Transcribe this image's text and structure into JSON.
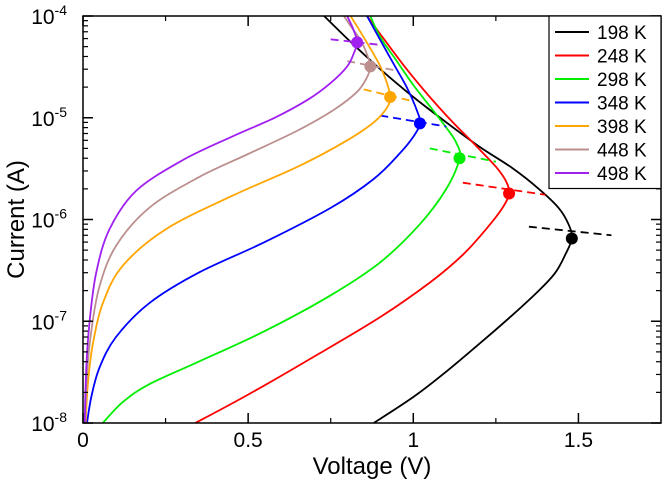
{
  "chart_data": {
    "type": "line",
    "title": "",
    "xlabel": "Voltage (V)",
    "ylabel": "Current (A)",
    "xlim": [
      0,
      1.75
    ],
    "ylim": [
      1e-08,
      0.0001
    ],
    "yscale": "log",
    "grid": false,
    "legend_position": "top-right",
    "x_ticks": [
      {
        "value": 0,
        "label": "0"
      },
      {
        "value": 0.5,
        "label": "0.5"
      },
      {
        "value": 1,
        "label": "1"
      },
      {
        "value": 1.5,
        "label": "1.5"
      }
    ],
    "y_ticks": [
      {
        "value": 1e-08,
        "base": "10",
        "exp": "-8"
      },
      {
        "value": 1e-07,
        "base": "10",
        "exp": "-7"
      },
      {
        "value": 1e-06,
        "base": "10",
        "exp": "-6"
      },
      {
        "value": 1e-05,
        "base": "10",
        "exp": "-5"
      },
      {
        "value": 0.0001,
        "base": "10",
        "exp": "-4"
      }
    ],
    "series": [
      {
        "name": "198 K",
        "color": "#000000",
        "peak": {
          "v": 1.48,
          "i": 6.5e-07
        },
        "x": [
          0.88,
          1.0,
          1.1,
          1.2,
          1.3,
          1.38,
          1.43,
          1.46,
          1.48,
          1.47,
          1.44,
          1.38,
          1.3,
          1.2,
          1.1,
          1.0,
          0.9,
          0.8,
          0.73
        ],
        "y": [
          1e-08,
          1.8e-08,
          3.2e-08,
          6e-08,
          1.15e-07,
          2e-07,
          3e-07,
          4.5e-07,
          6.5e-07,
          9e-07,
          1.3e-06,
          2e-06,
          3.2e-06,
          5.2e-06,
          9e-06,
          1.6e-05,
          3e-05,
          6e-05,
          0.0001
        ],
        "tangent": {
          "x": [
            1.35,
            1.6
          ],
          "y": [
            8.5e-07,
            7e-07
          ]
        }
      },
      {
        "name": "248 K",
        "color": "#ff0000",
        "peak": {
          "v": 1.29,
          "i": 1.8e-06
        },
        "x": [
          0.34,
          0.5,
          0.7,
          0.9,
          1.05,
          1.15,
          1.22,
          1.27,
          1.29,
          1.28,
          1.25,
          1.19,
          1.12,
          1.05,
          0.98,
          0.91,
          0.86
        ],
        "y": [
          1e-08,
          1.9e-08,
          4.5e-08,
          1.1e-07,
          2.4e-07,
          4.5e-07,
          8e-07,
          1.3e-06,
          1.8e-06,
          2.4e-06,
          3.3e-06,
          5.3e-06,
          9e-06,
          1.6e-05,
          3e-05,
          6e-05,
          0.0001
        ],
        "tangent": {
          "x": [
            1.15,
            1.4
          ],
          "y": [
            2.3e-06,
            1.75e-06
          ]
        }
      },
      {
        "name": "298 K",
        "color": "#00ee00",
        "peak": {
          "v": 1.14,
          "i": 4e-06
        },
        "x": [
          0.06,
          0.12,
          0.2,
          0.35,
          0.55,
          0.75,
          0.9,
          1.02,
          1.1,
          1.14,
          1.13,
          1.1,
          1.05,
          1.0,
          0.95,
          0.9,
          0.87
        ],
        "y": [
          1e-08,
          1.6e-08,
          2.4e-08,
          4e-08,
          8e-08,
          1.8e-07,
          3.8e-07,
          9e-07,
          2e-06,
          4e-06,
          5.7e-06,
          8e-06,
          1.3e-05,
          2.1e-05,
          3.6e-05,
          6.2e-05,
          0.0001
        ],
        "tangent": {
          "x": [
            1.05,
            1.25
          ],
          "y": [
            5e-06,
            3.7e-06
          ]
        }
      },
      {
        "name": "348 K",
        "color": "#0000ff",
        "peak": {
          "v": 1.02,
          "i": 8.8e-06
        },
        "x": [
          0.012,
          0.025,
          0.05,
          0.1,
          0.2,
          0.35,
          0.55,
          0.75,
          0.88,
          0.96,
          1.0,
          1.02,
          1.01,
          0.98,
          0.94,
          0.9,
          0.86
        ],
        "y": [
          1e-08,
          1.8e-08,
          3.5e-08,
          7e-08,
          1.5e-07,
          3e-07,
          6e-07,
          1.3e-06,
          2.5e-06,
          4.5e-06,
          6.5e-06,
          8.8e-06,
          1.2e-05,
          2e-05,
          3.4e-05,
          5.8e-05,
          0.0001
        ],
        "tangent": {
          "x": [
            0.9,
            1.1
          ],
          "y": [
            1.05e-05,
            8.2e-06
          ]
        }
      },
      {
        "name": "398 K",
        "color": "#ffa500",
        "peak": {
          "v": 0.93,
          "i": 1.6e-05
        },
        "x": [
          0.008,
          0.015,
          0.03,
          0.06,
          0.12,
          0.25,
          0.45,
          0.65,
          0.8,
          0.88,
          0.92,
          0.93,
          0.92,
          0.9,
          0.87,
          0.84,
          0.81
        ],
        "y": [
          1e-08,
          2.5e-08,
          6e-08,
          1.5e-07,
          3.5e-07,
          8e-07,
          1.7e-06,
          3.3e-06,
          6e-06,
          9e-06,
          1.25e-05,
          1.6e-05,
          2.2e-05,
          3.2e-05,
          4.8e-05,
          7e-05,
          0.0001
        ],
        "tangent": {
          "x": [
            0.85,
            1.0
          ],
          "y": [
            1.9e-05,
            1.45e-05
          ]
        }
      },
      {
        "name": "448 K",
        "color": "#bc8f8f",
        "peak": {
          "v": 0.87,
          "i": 3.2e-05
        },
        "x": [
          0.006,
          0.012,
          0.025,
          0.05,
          0.1,
          0.2,
          0.35,
          0.5,
          0.65,
          0.76,
          0.83,
          0.86,
          0.87,
          0.86,
          0.84,
          0.81,
          0.79
        ],
        "y": [
          1e-08,
          3e-08,
          8e-08,
          2.2e-07,
          5.5e-07,
          1.3e-06,
          2.6e-06,
          4.4e-06,
          7.5e-06,
          1.2e-05,
          1.8e-05,
          2.5e-05,
          3.2e-05,
          4.2e-05,
          5.8e-05,
          8e-05,
          0.0001
        ],
        "tangent": {
          "x": [
            0.8,
            0.95
          ],
          "y": [
            3.6e-05,
            2.9e-05
          ]
        }
      },
      {
        "name": "498 K",
        "color": "#a020f0",
        "peak": {
          "v": 0.83,
          "i": 5.5e-05
        },
        "x": [
          0.005,
          0.01,
          0.02,
          0.04,
          0.08,
          0.16,
          0.3,
          0.45,
          0.58,
          0.68,
          0.75,
          0.8,
          0.82,
          0.83,
          0.82,
          0.8
        ],
        "y": [
          1e-08,
          3.5e-08,
          1e-07,
          3e-07,
          8e-07,
          1.9e-06,
          3.8e-06,
          6.5e-06,
          1e-05,
          1.5e-05,
          2.2e-05,
          3.2e-05,
          4.3e-05,
          5.5e-05,
          7.2e-05,
          0.0001
        ],
        "tangent": {
          "x": [
            0.75,
            0.9
          ],
          "y": [
            5.9e-05,
            5.2e-05
          ]
        }
      }
    ]
  }
}
